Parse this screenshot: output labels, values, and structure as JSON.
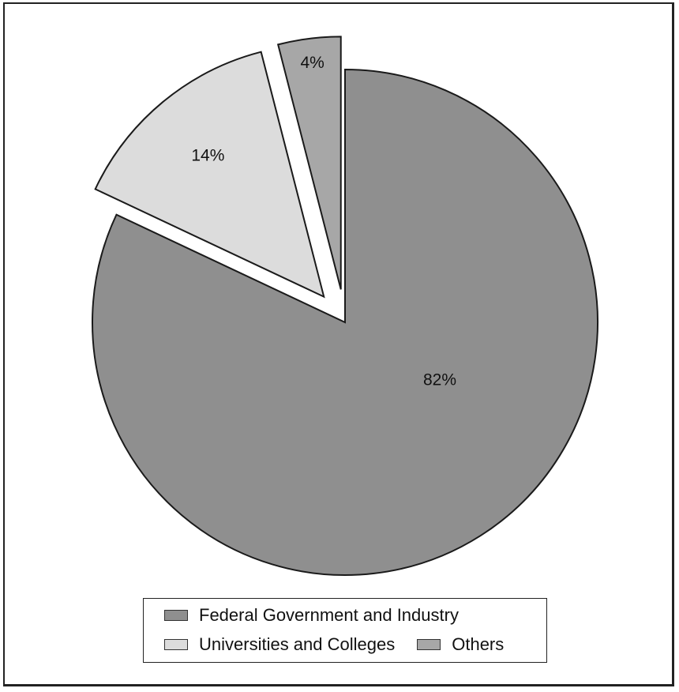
{
  "chart_data": {
    "type": "pie",
    "title": "",
    "slices": [
      {
        "name": "Federal Government and Industry",
        "value": 82,
        "label": "82%",
        "color": "#8f8f8f",
        "exploded": false
      },
      {
        "name": "Universities and Colleges",
        "value": 14,
        "label": "14%",
        "color": "#dcdcdc",
        "exploded": true
      },
      {
        "name": "Others",
        "value": 4,
        "label": "4%",
        "color": "#a7a7a7",
        "exploded": true
      }
    ],
    "legend": {
      "placement": "bottom",
      "entries": [
        {
          "label": "Federal Government and Industry",
          "color": "#8f8f8f"
        },
        {
          "label": "Universities and Colleges",
          "color": "#dcdcdc"
        },
        {
          "label": "Others",
          "color": "#a7a7a7"
        }
      ]
    }
  }
}
